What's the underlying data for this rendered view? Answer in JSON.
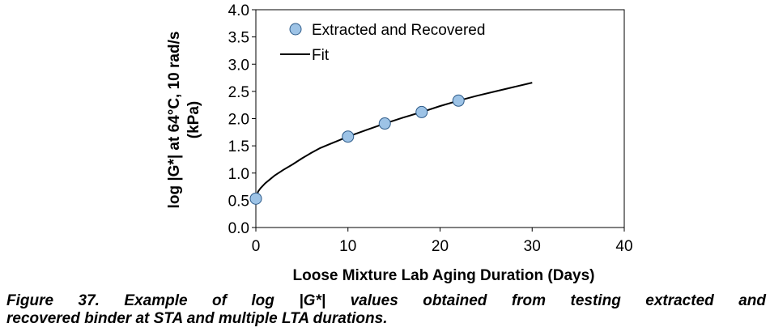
{
  "chart_data": {
    "type": "scatter",
    "xlabel": "Loose Mixture Lab Aging Duration (Days)",
    "ylabel_lines": [
      "log |G*| at 64°C, 10 rad/s",
      "(kPa)"
    ],
    "xlim": [
      0,
      40
    ],
    "ylim": [
      0.0,
      4.0
    ],
    "x_ticks": [
      0,
      10,
      20,
      30,
      40
    ],
    "x_tick_labels": [
      "0",
      "10",
      "20",
      "30",
      "40"
    ],
    "y_ticks": [
      0.0,
      0.5,
      1.0,
      1.5,
      2.0,
      2.5,
      3.0,
      3.5,
      4.0
    ],
    "y_tick_labels": [
      "0.0",
      "0.5",
      "1.0",
      "1.5",
      "2.0",
      "2.5",
      "3.0",
      "3.5",
      "4.0"
    ],
    "grid": false,
    "legend_position": "top-left",
    "series": [
      {
        "name": "Extracted and Recovered",
        "kind": "markers",
        "color": "#9DC3E6",
        "edge_color": "#2E5C8A",
        "x": [
          0,
          10,
          14,
          18,
          22
        ],
        "y": [
          0.53,
          1.67,
          1.91,
          2.12,
          2.33
        ]
      },
      {
        "name": "Fit",
        "kind": "line",
        "color": "#000000",
        "x": [
          0,
          0.25,
          0.5,
          1,
          1.5,
          2,
          3,
          4,
          5,
          6,
          7,
          8,
          9,
          10,
          12,
          14,
          16,
          18,
          20,
          22,
          24,
          26,
          28,
          30
        ],
        "y": [
          0.53,
          0.66,
          0.72,
          0.81,
          0.88,
          0.95,
          1.06,
          1.16,
          1.27,
          1.37,
          1.46,
          1.53,
          1.6,
          1.67,
          1.79,
          1.91,
          2.02,
          2.12,
          2.23,
          2.33,
          2.42,
          2.5,
          2.58,
          2.66
        ]
      }
    ]
  },
  "caption": {
    "line1": "Figure 37. Example of log |G*| values obtained from testing extracted and",
    "line2": "recovered binder at STA and multiple LTA durations."
  }
}
